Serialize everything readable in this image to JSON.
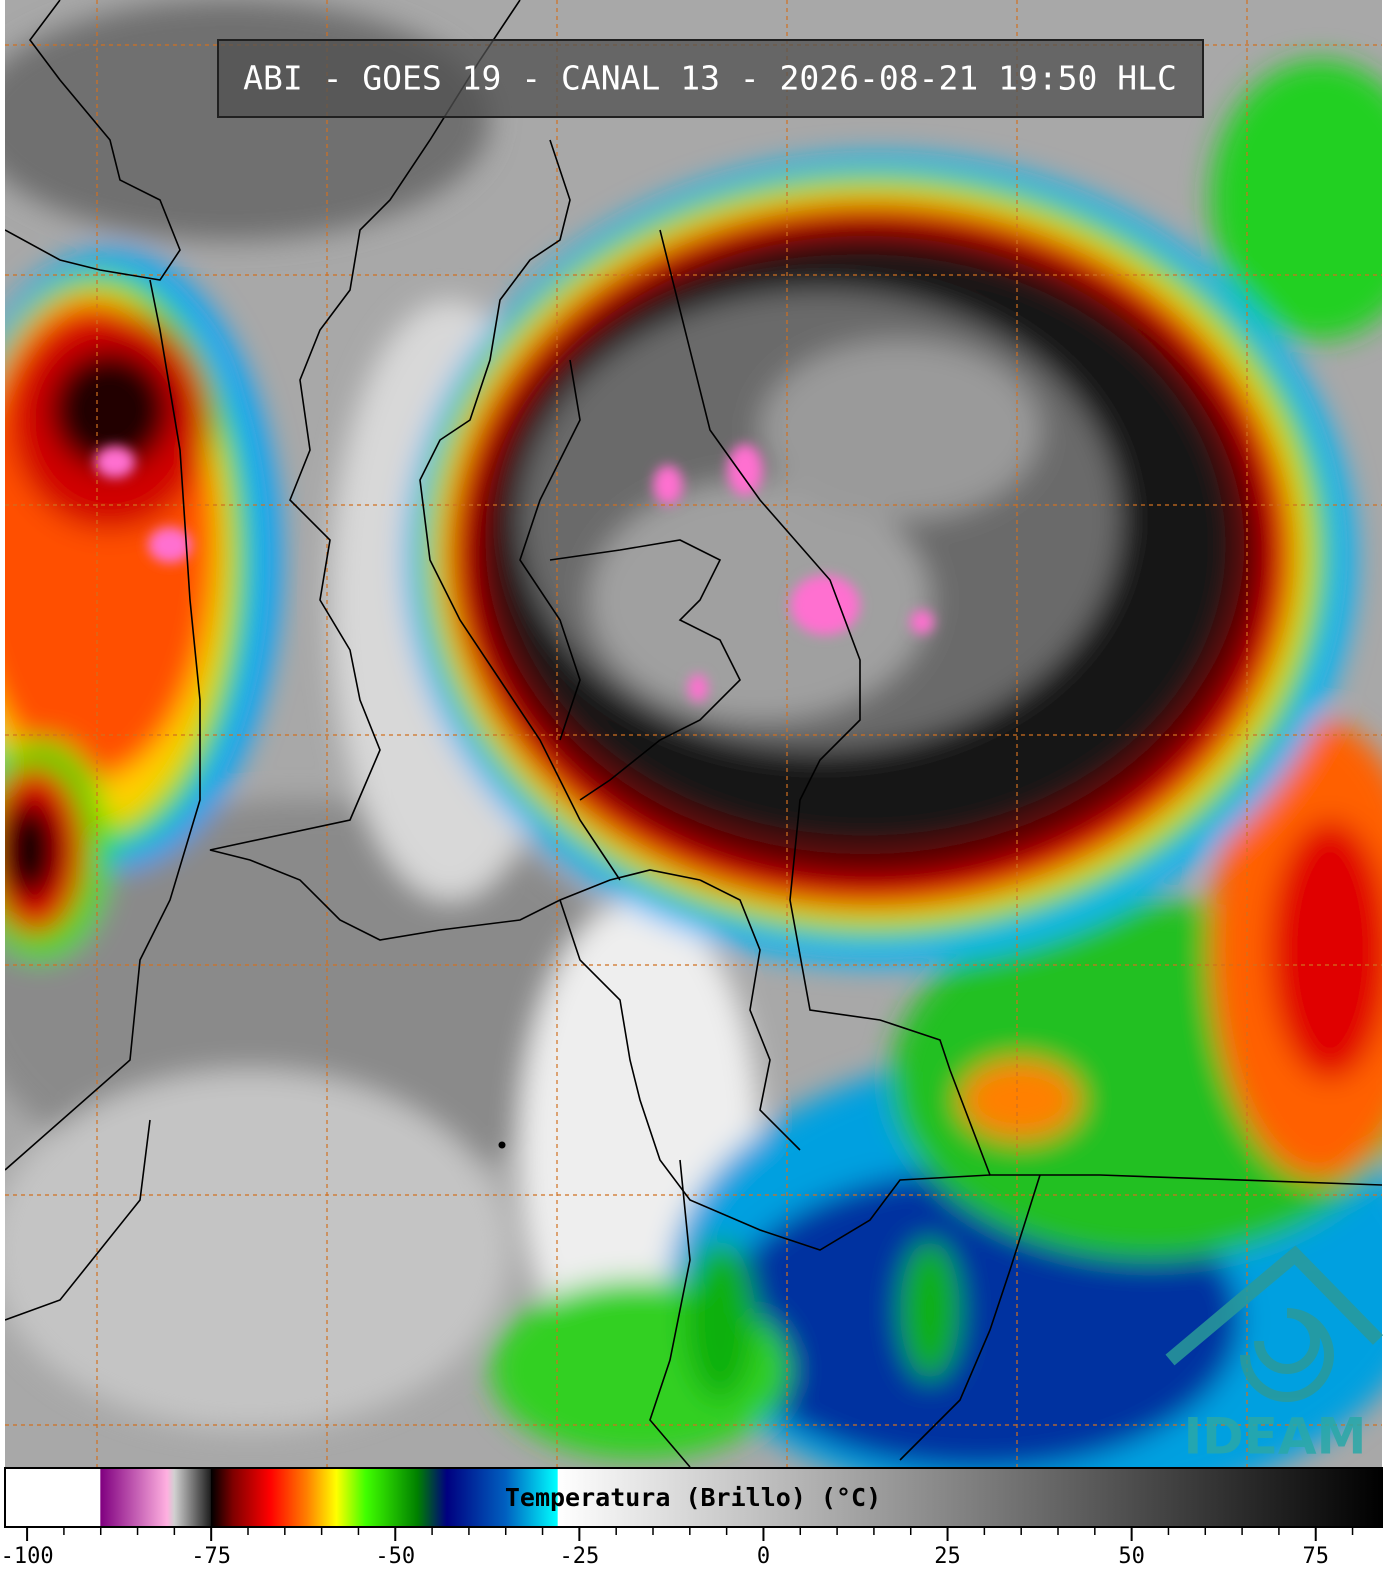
{
  "title": "ABI - GOES 19 - CANAL 13 - 2026-08-21 19:50 HLC",
  "logo": "IDEAM",
  "colorbar": {
    "label": "Temperatura (Brillo) (°C)",
    "lim": [
      -103,
      84
    ],
    "ticks": [
      -100,
      -75,
      -50,
      -25,
      0,
      25,
      50,
      75
    ],
    "minor_ticks": [
      -95,
      -90,
      -85,
      -80,
      -70,
      -65,
      -60,
      -55,
      -45,
      -40,
      -35,
      -30,
      -20,
      -15,
      -10,
      -5,
      5,
      10,
      15,
      20,
      30,
      35,
      40,
      45,
      55,
      60,
      65,
      70,
      80
    ],
    "colormap": [
      {
        "value": -103,
        "color": "#ffffff"
      },
      {
        "value": -90.1,
        "color": "#ffffff"
      },
      {
        "value": -90,
        "color": "#800080"
      },
      {
        "value": -81,
        "color": "#ffb0e0"
      },
      {
        "value": -80,
        "color": "#d0d0d0"
      },
      {
        "value": -75.1,
        "color": "#202020"
      },
      {
        "value": -75,
        "color": "#000000"
      },
      {
        "value": -72,
        "color": "#800000"
      },
      {
        "value": -67,
        "color": "#ff0000"
      },
      {
        "value": -62,
        "color": "#ff8000"
      },
      {
        "value": -58,
        "color": "#ffff00"
      },
      {
        "value": -54,
        "color": "#40ff00"
      },
      {
        "value": -47,
        "color": "#008000"
      },
      {
        "value": -43,
        "color": "#000080"
      },
      {
        "value": -35,
        "color": "#0060c0"
      },
      {
        "value": -28,
        "color": "#00ffff"
      },
      {
        "value": -27.9,
        "color": "#ffffff"
      },
      {
        "value": 84,
        "color": "#000000"
      }
    ]
  }
}
